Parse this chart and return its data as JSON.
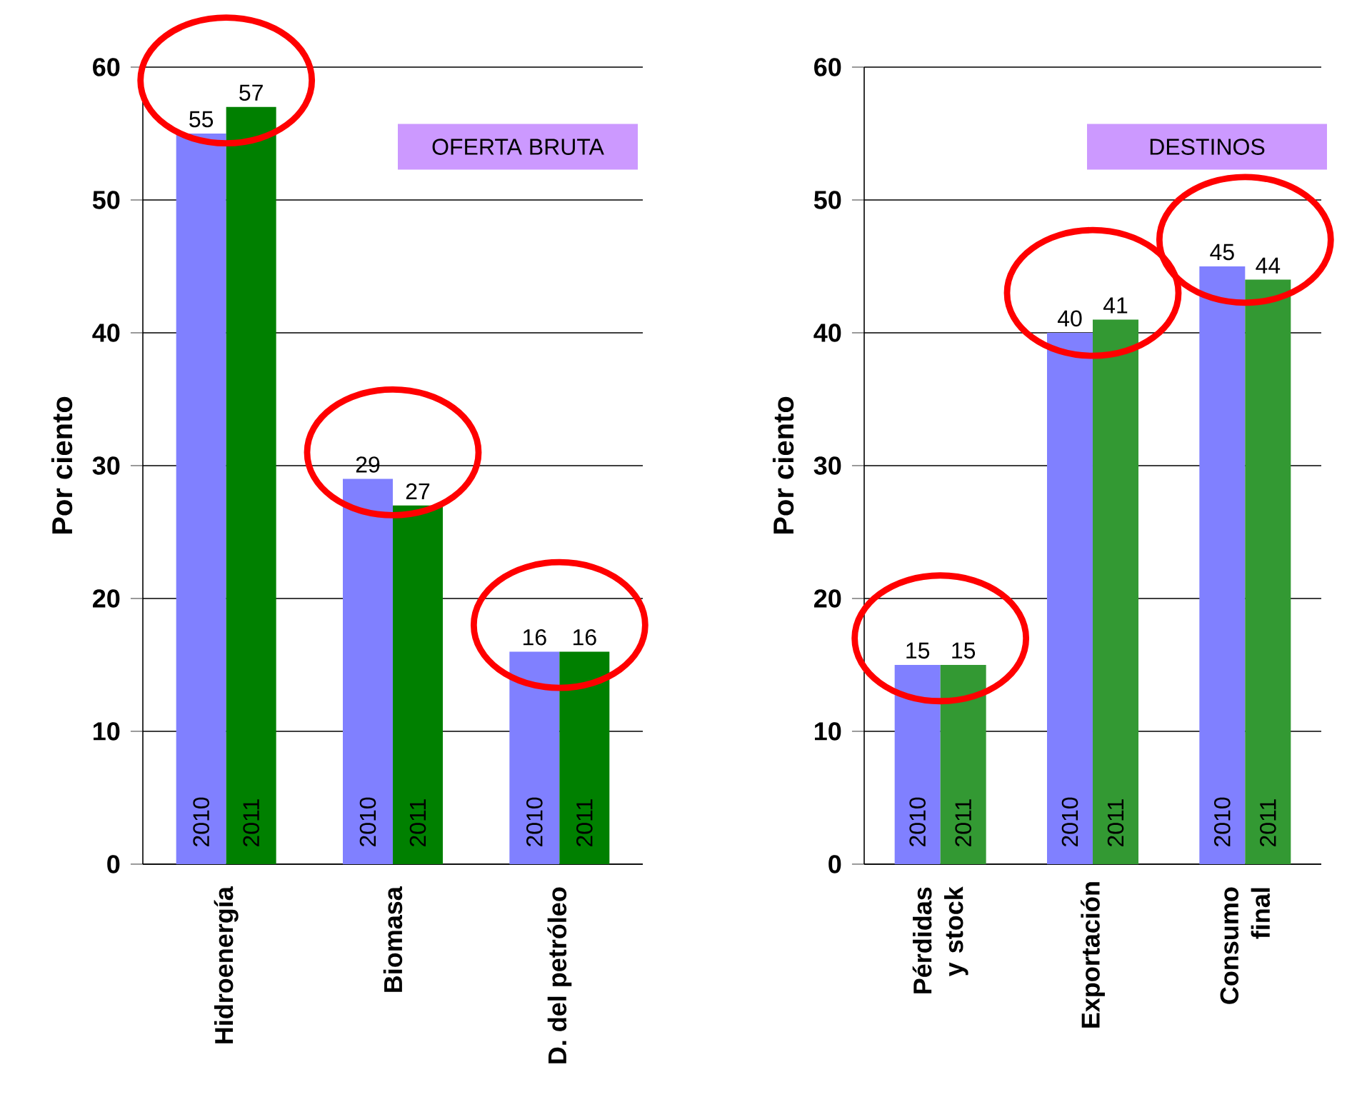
{
  "chart_data": [
    {
      "type": "bar",
      "title": "OFERTA BRUTA",
      "ylabel": "Por ciento",
      "categories": [
        "Hidroenergía",
        "Biomasa",
        "D. del petróleo"
      ],
      "series": [
        {
          "name": "2010",
          "color": "#8080ff",
          "values": [
            55,
            29,
            16
          ]
        },
        {
          "name": "2011",
          "color": "#008000",
          "values": [
            57,
            27,
            16
          ]
        }
      ],
      "ylim": [
        0,
        60
      ],
      "yticks": [
        0,
        10,
        20,
        30,
        40,
        50,
        60
      ],
      "grid": "y",
      "data_labels": true
    },
    {
      "type": "bar",
      "title": "DESTINOS",
      "ylabel": "Por ciento",
      "categories": [
        "Pérdidas y stock",
        "Exportación",
        "Consumo final"
      ],
      "series": [
        {
          "name": "2010",
          "color": "#8080ff",
          "values": [
            15,
            40,
            45
          ]
        },
        {
          "name": "2011",
          "color": "#339933",
          "values": [
            15,
            41,
            44
          ]
        }
      ],
      "ylim": [
        0,
        60
      ],
      "yticks": [
        0,
        10,
        20,
        30,
        40,
        50,
        60
      ],
      "grid": "y",
      "data_labels": true
    }
  ]
}
